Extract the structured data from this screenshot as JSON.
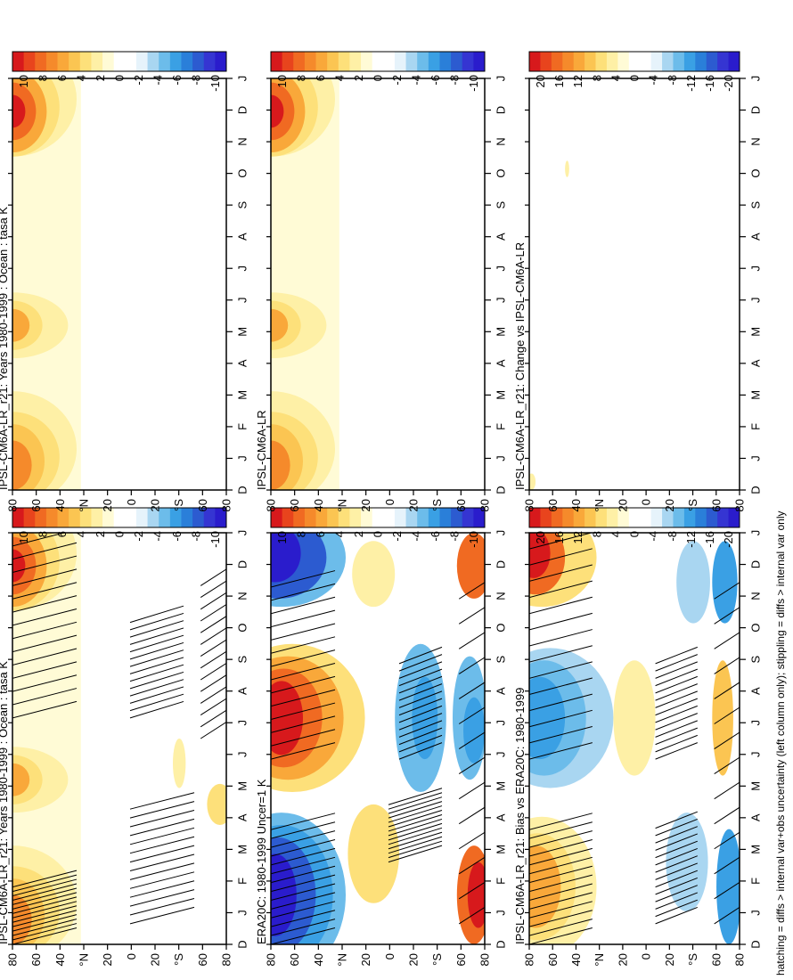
{
  "figure": {
    "footnote": "hatching = diffs > internal var+obs uncertainty (left column only); stippling = diffs > internal var only",
    "rotation": "rotated 90 degrees counter-clockwise"
  },
  "colorbars": {
    "a": {
      "labels": [
        "10",
        "8",
        "6",
        "4",
        "2",
        "0",
        "-2",
        "-4",
        "-6",
        "-8",
        "-10"
      ]
    },
    "b": {
      "labels": [
        "20",
        "16",
        "12",
        "8",
        "4",
        "0",
        "-4",
        "-8",
        "-12",
        "-16",
        "-20"
      ]
    }
  },
  "colors": {
    "levels_warm": [
      "#d7191c",
      "#e8441d",
      "#f06a22",
      "#f58a2b",
      "#f9a83a",
      "#fbc552",
      "#fde07a",
      "#fef0a6",
      "#fffbd6"
    ],
    "levels_cold": [
      "#e6f3fb",
      "#a9d6f1",
      "#6cbcea",
      "#3aa0e4",
      "#2a7fd9",
      "#2c5bd0",
      "#3535d2",
      "#2a1ccc"
    ],
    "white": "#ffffff"
  },
  "chart_data": [
    {
      "type": "heatmap",
      "title": "IPSL-CM6A-LR_r21: Years 1980-1999 : Ocean : tasa K",
      "xlabel": "",
      "ylabel": "",
      "x_ticks": [
        "D",
        "J",
        "F",
        "M",
        "A",
        "M",
        "J",
        "J",
        "A",
        "S",
        "O",
        "N",
        "D",
        "J"
      ],
      "y_ticks": [
        "80",
        "60",
        "40",
        "°N",
        "20",
        "0",
        "20",
        "°S",
        "60",
        "80"
      ],
      "colorbar": "a",
      "hatching": true,
      "stippling": true,
      "description": "Zonal-mean ocean near-surface air temperature annual cycle anomaly; strong positive (up to ~10 K) in Northern high latitudes in boreal winter, weak elsewhere"
    },
    {
      "type": "heatmap",
      "title": "ERA20C: 1980-1999 Uncer=1 K",
      "xlabel": "",
      "ylabel": "",
      "x_ticks": [
        "D",
        "J",
        "F",
        "M",
        "A",
        "M",
        "J",
        "J",
        "A",
        "S",
        "O",
        "N",
        "D",
        "J"
      ],
      "y_ticks": [
        "80",
        "60",
        "40",
        "°N",
        "20",
        "0",
        "20",
        "°S",
        "60",
        "80"
      ],
      "colorbar": "a",
      "hatching": true,
      "stippling": true,
      "description": "Reanalysis annual cycle: cold (~-10 K) northern winter, warm (~+10 K) northern summer; opposite sign at southern high latitudes"
    },
    {
      "type": "heatmap",
      "title": "IPSL-CM6A-LR_r21: Bias vs ERA20C: 1980-1999",
      "xlabel": "",
      "ylabel": "",
      "x_ticks": [
        "D",
        "J",
        "F",
        "M",
        "A",
        "M",
        "J",
        "J",
        "A",
        "S",
        "O",
        "N",
        "D",
        "J"
      ],
      "y_ticks": [
        "80",
        "60",
        "40",
        "°N",
        "20",
        "0",
        "20",
        "°S",
        "60",
        "80"
      ],
      "colorbar": "b",
      "hatching": true,
      "stippling": true,
      "description": "Model minus reanalysis: positive bias in northern high latitudes during winter, negative in northern summer; opposite in the south"
    },
    {
      "type": "heatmap",
      "title": "IPSL-CM6A-LR_r21: Years 1980-1999 : Ocean : tasa K",
      "xlabel": "",
      "ylabel": "",
      "x_ticks": [
        "D",
        "J",
        "F",
        "M",
        "A",
        "M",
        "J",
        "J",
        "A",
        "S",
        "O",
        "N",
        "D",
        "J"
      ],
      "y_ticks": [
        "80",
        "60",
        "40",
        "°N",
        "20",
        "0",
        "20",
        "°S",
        "60",
        "80"
      ],
      "colorbar": "a",
      "hatching": false,
      "stippling": false,
      "description": "Same model field without significance markings"
    },
    {
      "type": "heatmap",
      "title": "IPSL-CM6A-LR",
      "xlabel": "",
      "ylabel": "",
      "x_ticks": [
        "D",
        "J",
        "F",
        "M",
        "A",
        "M",
        "J",
        "J",
        "A",
        "S",
        "O",
        "N",
        "D",
        "J"
      ],
      "y_ticks": [
        "80",
        "60",
        "40",
        "°N",
        "20",
        "0",
        "20",
        "°S",
        "60",
        "80"
      ],
      "colorbar": "a",
      "hatching": false,
      "stippling": false,
      "description": "Reference model field, nearly identical to top panel"
    },
    {
      "type": "heatmap",
      "title": "IPSL-CM6A-LR_r21: Change vs IPSL-CM6A-LR",
      "xlabel": "",
      "ylabel": "",
      "x_ticks": [
        "D",
        "J",
        "F",
        "M",
        "A",
        "M",
        "J",
        "J",
        "A",
        "S",
        "O",
        "N",
        "D",
        "J"
      ],
      "y_ticks": [
        "80",
        "60",
        "40",
        "°N",
        "20",
        "0",
        "20",
        "°S",
        "60",
        "80"
      ],
      "colorbar": "b",
      "hatching": false,
      "stippling": false,
      "description": "Difference is near zero everywhere"
    }
  ]
}
